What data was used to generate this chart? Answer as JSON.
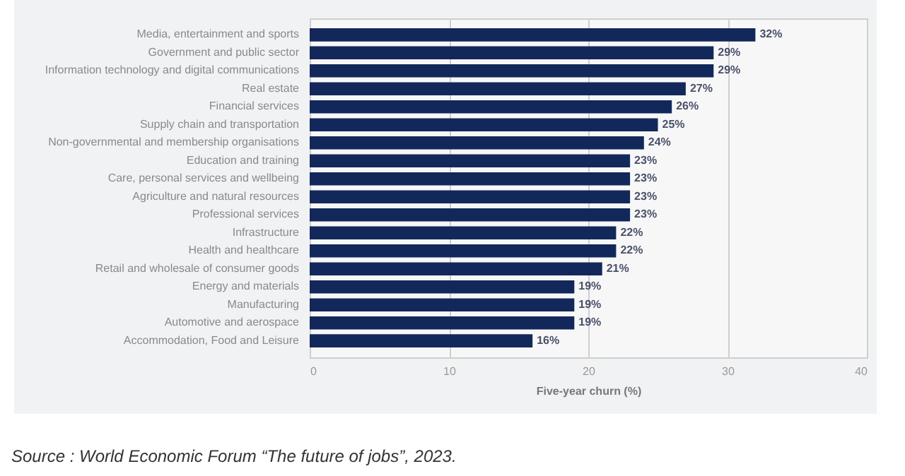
{
  "chart_data": {
    "type": "bar",
    "orientation": "horizontal",
    "categories": [
      "Media, entertainment and sports",
      "Government and public sector",
      "Information technology and digital communications",
      "Real estate",
      "Financial services",
      "Supply chain and transportation",
      "Non-governmental and membership organisations",
      "Education and training",
      "Care, personal services and wellbeing",
      "Agriculture and natural resources",
      "Professional services",
      "Infrastructure",
      "Health and healthcare",
      "Retail and wholesale of consumer goods",
      "Energy and materials",
      "Manufacturing",
      "Automotive and aerospace",
      "Accommodation, Food and Leisure"
    ],
    "values": [
      32,
      29,
      29,
      27,
      26,
      25,
      24,
      23,
      23,
      23,
      23,
      22,
      22,
      21,
      19,
      19,
      19,
      16
    ],
    "value_labels": [
      "32%",
      "29%",
      "29%",
      "27%",
      "26%",
      "25%",
      "24%",
      "23%",
      "23%",
      "23%",
      "23%",
      "22%",
      "22%",
      "21%",
      "19%",
      "19%",
      "19%",
      "16%"
    ],
    "color": "#13285a",
    "xlim": [
      0,
      40
    ],
    "xticks": [
      0,
      10,
      20,
      30,
      40
    ],
    "xlabel": "Five-year churn (%)",
    "grid": "x",
    "annotations": [
      "Source : World Economic Forum “The future of jobs”, 2023."
    ]
  }
}
